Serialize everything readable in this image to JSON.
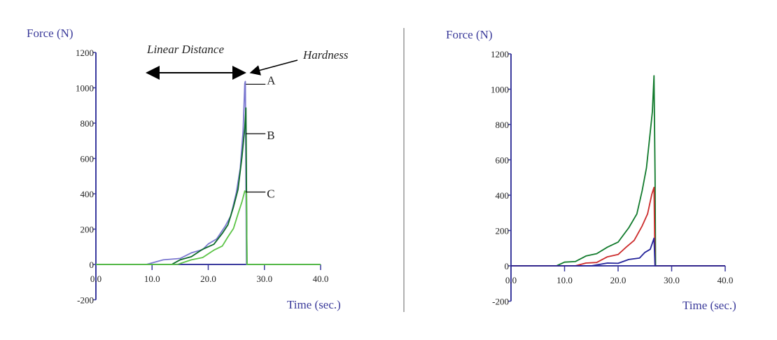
{
  "chart_data": [
    {
      "type": "line",
      "ylabel": "Force    (N)",
      "xlabel": "Time (sec.)",
      "xlim": [
        0,
        40
      ],
      "ylim": [
        -200,
        1200
      ],
      "xticks": [
        "0.0",
        "10.0",
        "20.0",
        "30.0",
        "40.0"
      ],
      "yticks": [
        "-200",
        "0",
        "200",
        "400",
        "600",
        "800",
        "1000",
        "1200"
      ],
      "grid": false,
      "annotations": {
        "linear_distance": "Linear Distance",
        "hardness": "Hardness",
        "points": [
          {
            "label": "A",
            "y": 1020
          },
          {
            "label": "B",
            "y": 740
          },
          {
            "label": "C",
            "y": 410
          }
        ]
      },
      "series": [
        {
          "color": "#7b78d0",
          "x": [
            0,
            9,
            12,
            15,
            17,
            19,
            20,
            21.5,
            23,
            24,
            25,
            25.7,
            26.2,
            26.5,
            26.6,
            26.8,
            40
          ],
          "y": [
            0,
            0,
            20,
            40,
            60,
            90,
            110,
            150,
            210,
            280,
            400,
            550,
            750,
            1030,
            1030,
            0,
            0
          ]
        },
        {
          "color": "#0d6b2a",
          "x": [
            0,
            13.5,
            15,
            17,
            19,
            21,
            22.5,
            23.5,
            24.5,
            25.3,
            26,
            26.5,
            26.7,
            26.9,
            40
          ],
          "y": [
            0,
            0,
            20,
            50,
            80,
            120,
            170,
            230,
            320,
            430,
            600,
            780,
            880,
            0,
            0
          ]
        },
        {
          "color": "#5cc447",
          "x": [
            0,
            14.5,
            17,
            19,
            21,
            22.5,
            23.5,
            24.5,
            25.3,
            26,
            26.5,
            26.8,
            26.9,
            40
          ],
          "y": [
            0,
            0,
            20,
            45,
            75,
            110,
            150,
            210,
            280,
            360,
            410,
            410,
            0,
            0
          ]
        }
      ]
    },
    {
      "type": "line",
      "ylabel": "Force    (N)",
      "xlabel": "Time (sec.)",
      "xlim": [
        0,
        40
      ],
      "ylim": [
        -200,
        1200
      ],
      "xticks": [
        "0.0",
        "10.0",
        "20.0",
        "30.0",
        "40.0"
      ],
      "yticks": [
        "-200",
        "0",
        "200",
        "400",
        "600",
        "800",
        "1000",
        "1200"
      ],
      "grid": false,
      "series": [
        {
          "color": "#117a2c",
          "x": [
            0,
            8.5,
            10,
            12,
            14,
            16,
            18,
            20,
            22,
            23.5,
            24.5,
            25.3,
            26,
            26.4,
            26.7,
            26.9,
            27,
            40
          ],
          "y": [
            0,
            0,
            15,
            30,
            50,
            75,
            100,
            140,
            210,
            300,
            420,
            560,
            750,
            880,
            1070,
            520,
            0,
            0
          ]
        },
        {
          "color": "#cc2b2b",
          "x": [
            0,
            12,
            14,
            16,
            18,
            20,
            21.5,
            23,
            24.5,
            25.5,
            26.3,
            26.7,
            26.9,
            40
          ],
          "y": [
            0,
            0,
            10,
            25,
            45,
            70,
            100,
            150,
            220,
            300,
            400,
            450,
            0,
            0
          ]
        },
        {
          "color": "#23239a",
          "x": [
            0,
            15,
            18,
            20,
            22,
            24,
            25,
            26,
            26.7,
            26.9,
            40
          ],
          "y": [
            0,
            0,
            10,
            20,
            30,
            50,
            70,
            100,
            150,
            0,
            0
          ]
        }
      ]
    }
  ]
}
